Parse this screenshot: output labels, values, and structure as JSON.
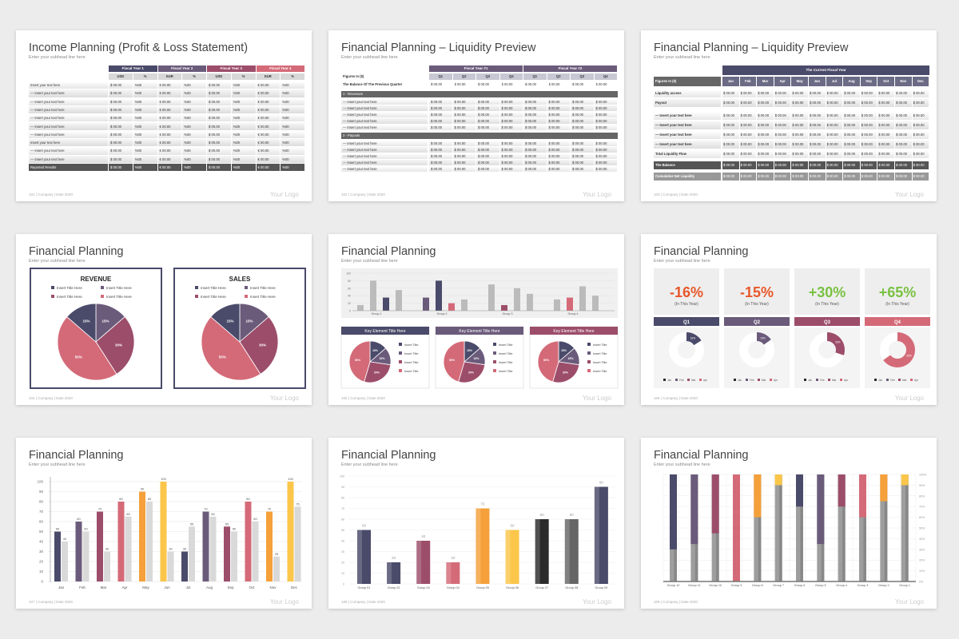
{
  "colors": {
    "navy": "#4a4a6a",
    "purple": "#6b5b7b",
    "plum": "#9c4d6a",
    "rose": "#d46a78",
    "orange": "#f5a03a",
    "yellow": "#fbc64a",
    "gray": "#bbbbbb",
    "darkgray": "#666666",
    "black": "#2b2b2b",
    "red_kpi": "#e8572a",
    "green_kpi": "#7ac142"
  },
  "common": {
    "subhead": "Enter your subhead line here",
    "logo": "Your Logo",
    "footer_text": "| Company | Date 2020"
  },
  "slide1": {
    "title": "Income Planning (Profit & Loss Statement)",
    "page": "101",
    "years": [
      "Fiscal Year 1",
      "Fiscal Year 2",
      "Fiscal Year 3",
      "Fiscal Year 4"
    ],
    "units": [
      "USD",
      "%",
      "EUR",
      "%",
      "USD",
      "%",
      "EUR",
      "%"
    ],
    "rows": [
      "Insert your text here",
      "— Insert your text here",
      "— Insert your text here",
      "— Insert your text here",
      "— Insert your text here",
      "— Insert your text here",
      "— Insert your text here",
      "Insert your text here",
      "— Insert your text here",
      "— Insert your text here",
      "Reported Results"
    ],
    "vals": [
      "$ 00.00",
      "%00",
      "€ 00.00",
      "%00",
      "$ 00.00",
      "%00",
      "€ 00.00",
      "%00"
    ]
  },
  "slide2": {
    "title": "Financial Planning – Liquidity Preview",
    "page": "102",
    "years": [
      "Fiscal Year #1",
      "Fiscal Year #2"
    ],
    "qs": [
      "Q1",
      "Q2",
      "Q3",
      "Q4",
      "Q1",
      "Q2",
      "Q3",
      "Q4"
    ],
    "figures": "Figures In ($)",
    "balance": "The Balance Of The Previous Quarter",
    "revenues": "1 - Revenues",
    "payouts": "2 - Payouts",
    "row": "— Insert your text here",
    "val": "$ 00.00"
  },
  "slide3": {
    "title": "Financial Planning – Liquidity Preview",
    "page": "103",
    "header": "The Current Fiscal Year",
    "figures": "Figures In ($)",
    "months": [
      "Jan",
      "Feb",
      "Mar",
      "Apr",
      "May",
      "Jun",
      "Jul",
      "Aug",
      "Sep",
      "Oct",
      "Nov",
      "Dec"
    ],
    "rows": [
      "Liquidity access",
      "Payout",
      "— Insert your text here",
      "— Insert your text here",
      "— Insert your text here",
      "— Insert your text here",
      "Total Liquidity Flow",
      "The Balance",
      "Cumulative Net Liquidity"
    ],
    "val": "$ 00.00"
  },
  "slide4": {
    "title": "Financial Planning",
    "page": "104",
    "boxes": [
      {
        "label": "REVENUE"
      },
      {
        "label": "SALES"
      }
    ],
    "legend": [
      "Insert Title Here",
      "Insert Title Here",
      "Insert Title Here",
      "Insert Title Here"
    ],
    "pie": [
      15,
      15,
      30,
      50
    ]
  },
  "slide5": {
    "title": "Financial Planning",
    "page": "105",
    "groups": [
      "Group 1",
      "Group 2",
      "Group 3",
      "Group 4"
    ],
    "yticks": [
      "100",
      "80",
      "60",
      "40",
      "20",
      "0"
    ],
    "key_title": "Key Element Title Here",
    "legend": "Insert Title",
    "pie": [
      15,
      15,
      30,
      50
    ]
  },
  "slide6": {
    "title": "Financial Planning",
    "page": "106",
    "kpis": [
      {
        "value": "-16%",
        "note": "(In This Year)",
        "q": "Q1",
        "pct": 16
      },
      {
        "value": "-15%",
        "note": "(In This Year)",
        "q": "Q2",
        "pct": 15
      },
      {
        "value": "+30%",
        "note": "(In This Year)",
        "q": "Q3",
        "pct": 30
      },
      {
        "value": "+65%",
        "note": "(In This Year)",
        "q": "Q4",
        "pct": 65
      }
    ],
    "legend": [
      "Jan",
      "Feb",
      "Mar",
      "Apr"
    ]
  },
  "slide7": {
    "title": "Financial Planning",
    "page": "107"
  },
  "slide8": {
    "title": "Financial Planning",
    "page": "108"
  },
  "slide9": {
    "title": "Financial Planning",
    "page": "109"
  },
  "chart_data": [
    {
      "type": "bar",
      "categories": [
        "Jan",
        "Feb",
        "Mar",
        "Apr",
        "May",
        "Jun",
        "Jul",
        "Aug",
        "Sep",
        "Oct",
        "Nov",
        "Dec"
      ],
      "series": [
        {
          "values": [
            50,
            60,
            70,
            80,
            90,
            100,
            30,
            70,
            55,
            80,
            70,
            100
          ]
        },
        {
          "values": [
            40,
            50,
            30,
            65,
            80,
            30,
            55,
            65,
            50,
            60,
            25,
            75
          ]
        }
      ],
      "ylim": [
        0,
        100
      ],
      "yticks": [
        0,
        10,
        20,
        30,
        40,
        50,
        60,
        70,
        80,
        90,
        100
      ]
    },
    {
      "type": "bar",
      "categories": [
        "Group 01",
        "Group 02",
        "Group 03",
        "Group 04",
        "Group 05",
        "Group 06",
        "Group 07",
        "Group 08",
        "Group 09"
      ],
      "values": [
        50,
        20,
        40,
        20,
        70,
        50,
        60,
        60,
        90
      ],
      "ylim": [
        0,
        100
      ],
      "yticks": [
        0,
        10,
        20,
        30,
        40,
        50,
        60,
        70,
        80,
        90,
        100
      ]
    },
    {
      "type": "bar",
      "categories": [
        "Group 12",
        "Group 11",
        "Group 10",
        "Group 9",
        "Group 8",
        "Group 7",
        "Group 6",
        "Group 5",
        "Group 4",
        "Group 3",
        "Group 2",
        "Group 1"
      ],
      "values": [
        70,
        65,
        55,
        100,
        40,
        10,
        30,
        65,
        30,
        40,
        25,
        10
      ],
      "yticks": [
        "100%",
        "90%",
        "80%",
        "70%",
        "60%",
        "50%",
        "40%",
        "30%",
        "20%",
        "10%",
        "0%"
      ]
    },
    {
      "type": "bar",
      "categories": [
        "Group 1",
        "Group 2",
        "Group 3",
        "Group 4"
      ],
      "series": [
        {
          "values": [
            10,
            60,
            10,
            35
          ]
        },
        {
          "values": [
            75,
            15,
            20,
            45
          ]
        },
        {
          "values": [
            30,
            30,
            40,
            30
          ]
        }
      ],
      "ylim": [
        0,
        100
      ],
      "yticks": [
        0,
        20,
        40,
        60,
        80,
        100
      ]
    }
  ]
}
